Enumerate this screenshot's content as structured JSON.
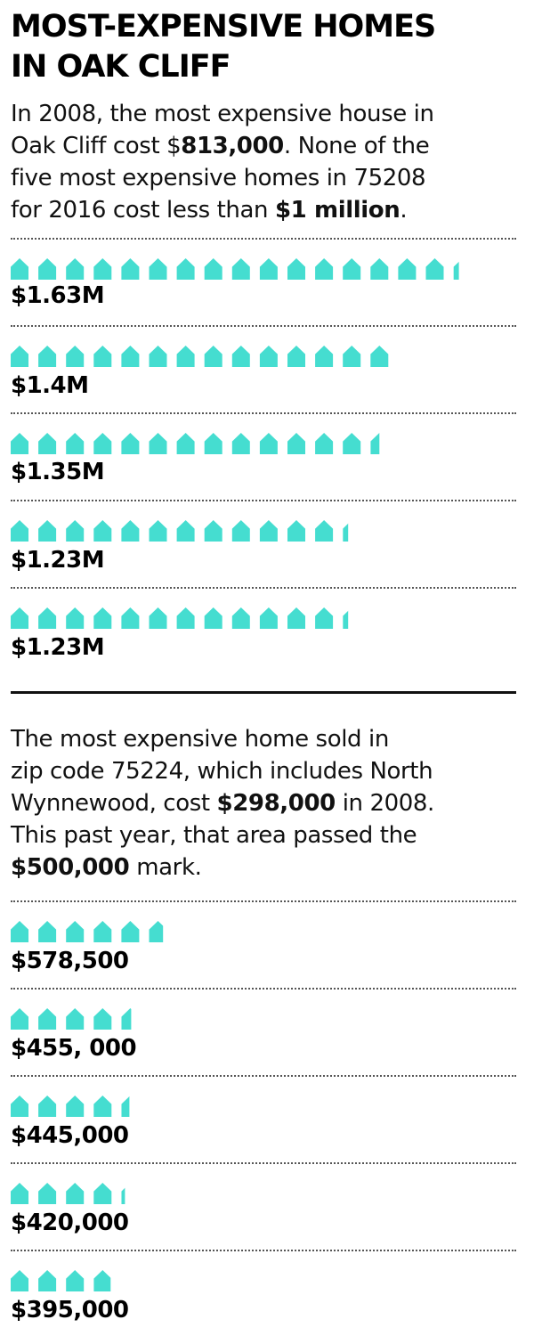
{
  "header": {
    "title_line1": "MOST-EXPENSIVE HOMES",
    "title_line2": "IN OAK CLIFF"
  },
  "intro1": {
    "l1": "In 2008, the most expensive house in",
    "l2_pre": "Oak Cliff cost $",
    "l2_bold": "813,000",
    "l2_post": ". None of the",
    "l3": "five most expensive homes in 75208",
    "l4_pre": "for 2016 cost less than ",
    "l4_bold": "$1 million",
    "l4_post": "."
  },
  "intro2": {
    "l1": "The most expensive home sold in",
    "l2": "zip code 75224, which includes North",
    "l3_pre": "Wynnewood, cost ",
    "l3_bold": "$298,000",
    "l3_post": " in 2008.",
    "l4": "This past year, that area passed the",
    "l5_bold": "$500,000",
    "l5_post": " mark."
  },
  "colors": {
    "icon": "#45ddd0",
    "text": "#111111",
    "rule": "#555555"
  },
  "icon_name": "house-icon",
  "chart_data": [
    {
      "type": "bar",
      "description": "Pictogram; one house icon per $100,000",
      "unit_per_icon": 100000,
      "categories": [
        "$1.63M",
        "$1.4M",
        "$1.35M",
        "$1.23M",
        "$1.23M"
      ],
      "values": [
        1630000,
        1400000,
        1350000,
        1230000,
        1230000
      ]
    },
    {
      "type": "bar",
      "description": "Pictogram; one house icon per $100,000",
      "unit_per_icon": 100000,
      "categories": [
        "$578,500",
        "$455, 000",
        "$445,000",
        "$420,000",
        "$395,000"
      ],
      "values": [
        578500,
        455000,
        445000,
        420000,
        395000
      ]
    }
  ]
}
